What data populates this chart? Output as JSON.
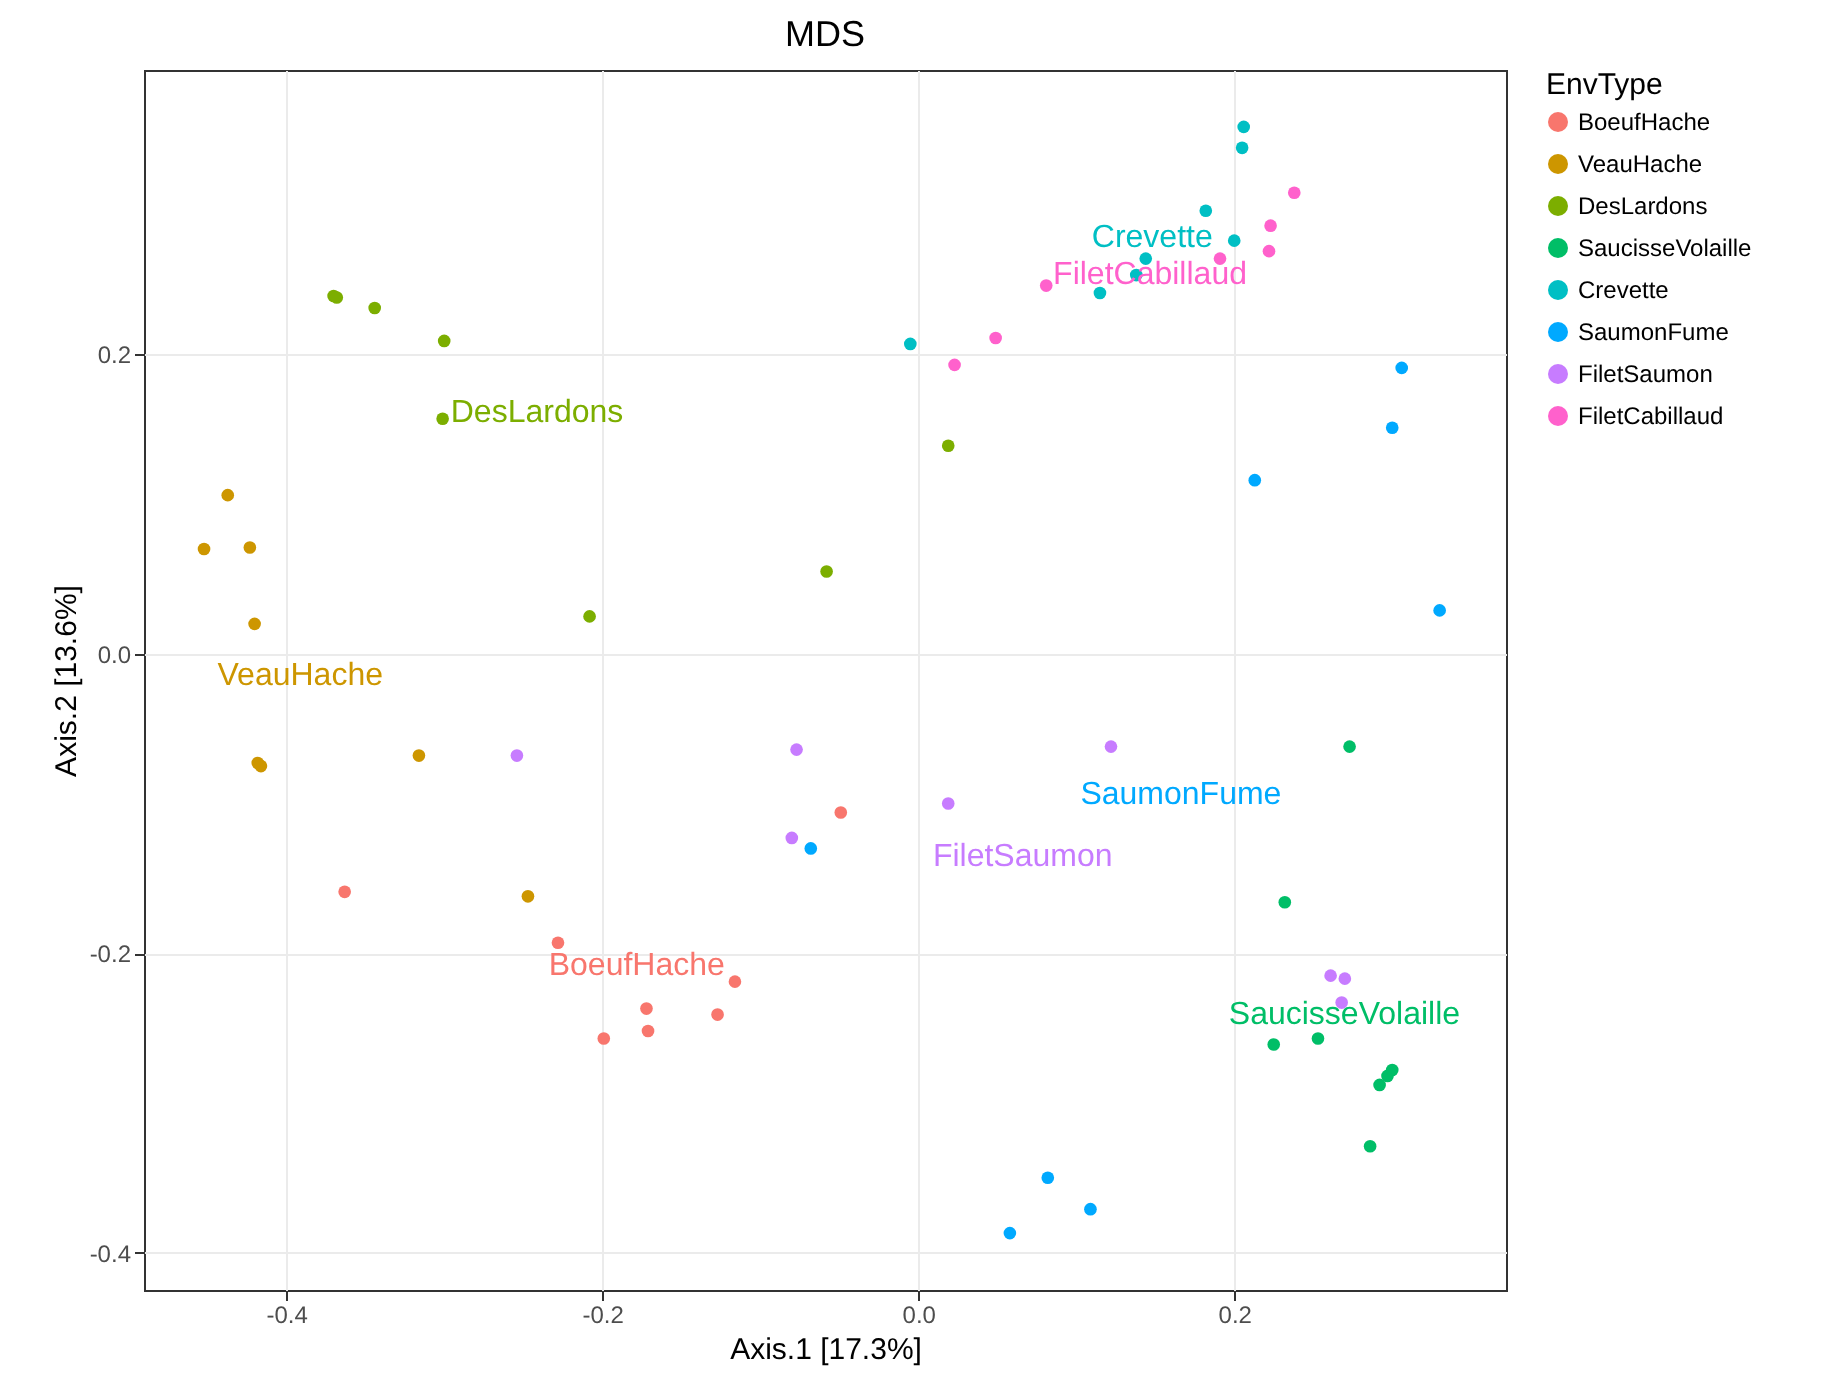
{
  "chart_data": {
    "type": "scatter",
    "title": "MDS",
    "xlabel": "Axis.1   [17.3%]",
    "ylabel": "Axis.2   [13.6%]",
    "legend_title": "EnvType",
    "legend": "right",
    "grid": true,
    "marker": "circle",
    "xlim": [
      -0.49,
      0.372
    ],
    "ylim": [
      -0.425,
      0.39
    ],
    "xticks": [
      -0.4,
      -0.2,
      {
        "value": 0,
        "label": "0.0"
      },
      0.2
    ],
    "yticks": [
      -0.4,
      -0.2,
      {
        "value": 0,
        "label": "0.0"
      },
      0.2
    ],
    "series": [
      {
        "name": "BoeufHache",
        "color": "#f8766d",
        "x": [
          -0.363,
          -0.228,
          -0.172,
          -0.171,
          -0.199,
          -0.127,
          -0.116,
          -0.049
        ],
        "values": [
          -0.159,
          -0.193,
          -0.237,
          -0.252,
          -0.257,
          -0.241,
          -0.219,
          -0.106
        ]
      },
      {
        "name": "VeauHache",
        "color": "#cd9600",
        "x": [
          -0.452,
          -0.437,
          -0.423,
          -0.42,
          -0.418,
          -0.416,
          -0.316,
          -0.247
        ],
        "values": [
          0.07,
          0.106,
          0.071,
          0.02,
          -0.073,
          -0.075,
          -0.068,
          -0.162
        ]
      },
      {
        "name": "DesLardons",
        "color": "#7cae00",
        "x": [
          -0.37,
          -0.368,
          -0.344,
          -0.3,
          -0.301,
          -0.208,
          -0.058,
          0.019
        ],
        "values": [
          0.239,
          0.238,
          0.231,
          0.209,
          0.157,
          0.025,
          0.055,
          0.139
        ]
      },
      {
        "name": "SaucisseVolaille",
        "color": "#00be67",
        "x": [
          0.273,
          0.232,
          0.225,
          0.253,
          0.292,
          0.297,
          0.3,
          0.286
        ],
        "values": [
          -0.062,
          -0.166,
          -0.261,
          -0.257,
          -0.288,
          -0.282,
          -0.278,
          -0.329
        ]
      },
      {
        "name": "Crevette",
        "color": "#00bfc4",
        "x": [
          -0.005,
          0.115,
          0.138,
          0.144,
          0.182,
          0.2,
          0.205,
          0.206
        ],
        "values": [
          0.207,
          0.241,
          0.253,
          0.264,
          0.296,
          0.276,
          0.338,
          0.352
        ]
      },
      {
        "name": "SaumonFume",
        "color": "#00a9ff",
        "x": [
          0.213,
          0.3,
          0.306,
          0.33,
          -0.068,
          0.082,
          0.109,
          0.058
        ],
        "values": [
          0.116,
          0.151,
          0.191,
          0.029,
          -0.13,
          -0.35,
          -0.371,
          -0.387
        ]
      },
      {
        "name": "FiletSaumon",
        "color": "#c77cff",
        "x": [
          -0.254,
          -0.077,
          -0.08,
          0.019,
          0.122,
          0.261,
          0.27,
          0.268
        ],
        "values": [
          -0.068,
          -0.064,
          -0.123,
          -0.1,
          -0.062,
          -0.215,
          -0.217,
          -0.233
        ]
      },
      {
        "name": "FiletCabillaud",
        "color": "#ff61cc",
        "x": [
          0.023,
          0.049,
          0.081,
          0.191,
          0.222,
          0.223,
          0.238
        ],
        "values": [
          0.193,
          0.211,
          0.246,
          0.264,
          0.269,
          0.286,
          0.308
        ]
      }
    ],
    "annotations": [
      "BoeufHache",
      "VeauHache",
      "DesLardons",
      "SaucisseVolaille",
      "Crevette",
      "SaumonFume",
      "FiletSaumon",
      "FiletCabillaud"
    ]
  }
}
